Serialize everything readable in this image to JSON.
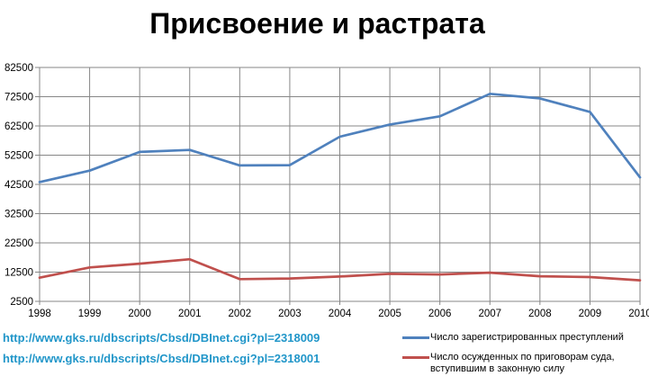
{
  "chart_data": {
    "type": "line",
    "title": "Присвоение и растрата",
    "x": [
      1998,
      1999,
      2000,
      2001,
      2002,
      2003,
      2004,
      2005,
      2006,
      2007,
      2008,
      2009,
      2010
    ],
    "series": [
      {
        "name": "Число зарегистрированных преступлений",
        "color": "#4F81BD",
        "values": [
          43300,
          47200,
          53600,
          54300,
          49000,
          49100,
          58800,
          63000,
          65800,
          73500,
          71900,
          67300,
          44900
        ]
      },
      {
        "name": "Число осужденных по приговорам суда, вступившим в законную силу",
        "color": "#C0504D",
        "values": [
          10600,
          14100,
          15400,
          16900,
          10100,
          10300,
          11000,
          11900,
          11700,
          12300,
          11100,
          10800,
          9700
        ]
      }
    ],
    "ylim": [
      2500,
      82500
    ],
    "ytick_step": 10000,
    "yticks": [
      2500,
      12500,
      22500,
      32500,
      42500,
      52500,
      62500,
      72500,
      82500
    ],
    "grid": true,
    "legend_position": "bottom-right",
    "xlabel": "",
    "ylabel": ""
  },
  "links": [
    {
      "text": "http://www.gks.ru/dbscripts/Cbsd/DBInet.cgi?pl=2318009"
    },
    {
      "text": "http://www.gks.ru/dbscripts/Cbsd/DBInet.cgi?pl=2318001"
    }
  ],
  "colors": {
    "series_registered": "#4F81BD",
    "series_convicted": "#C0504D",
    "gridline": "#878787",
    "axis_text": "#000000",
    "link": "#2196C9",
    "background": "#FFFFFF"
  }
}
